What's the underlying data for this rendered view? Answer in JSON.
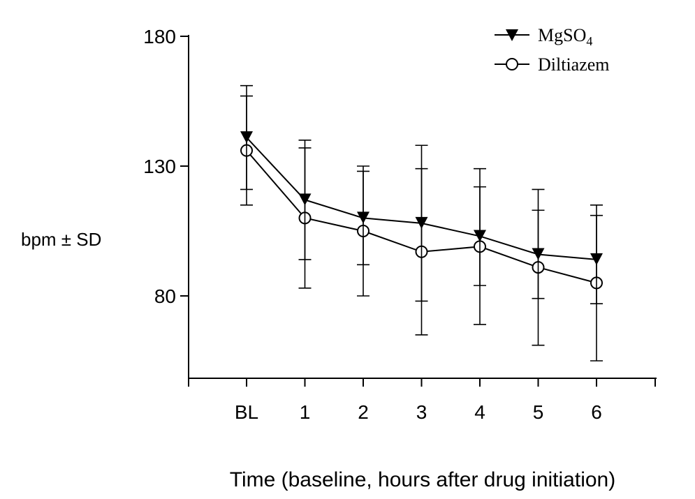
{
  "chart_data": {
    "type": "line",
    "categories": [
      "BL",
      "1",
      "2",
      "3",
      "4",
      "5",
      "6"
    ],
    "xlabel": "Time (baseline, hours after drug initiation)",
    "ylabel": "bpm ± SD",
    "yticks": [
      "180",
      "130",
      "80"
    ],
    "ytick_values": [
      180,
      130,
      80
    ],
    "ylim": [
      50,
      180
    ],
    "grid": false,
    "legend_position": "top-right",
    "series": [
      {
        "name": "MgSO4",
        "legend_main": "MgSO",
        "legend_sub": "4",
        "marker": "filled-triangle-down",
        "values": [
          141,
          117,
          110,
          108,
          103,
          96,
          94
        ],
        "errors": [
          20,
          23,
          18,
          30,
          19,
          17,
          17
        ]
      },
      {
        "name": "Diltiazem",
        "legend_main": "Diltiazem",
        "legend_sub": "",
        "marker": "open-circle",
        "values": [
          136,
          110,
          105,
          97,
          99,
          91,
          85
        ],
        "errors": [
          21,
          27,
          25,
          32,
          30,
          30,
          30
        ]
      }
    ]
  }
}
